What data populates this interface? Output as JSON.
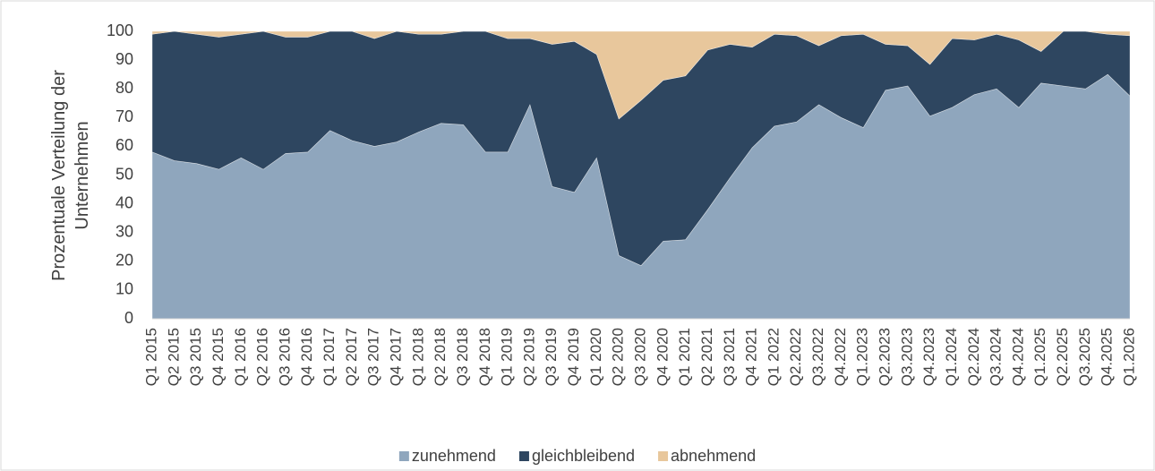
{
  "chart_data": {
    "type": "stacked_area",
    "ylabel": [
      "Prozentuale Verteilung der",
      "Unternehmen"
    ],
    "categories": [
      "Q1 2015",
      "Q2 2015",
      "Q3 2015",
      "Q4 2015",
      "Q1 2016",
      "Q2 2016",
      "Q3 2016",
      "Q4 2016",
      "Q1 2017",
      "Q2 2017",
      "Q3 2017",
      "Q4 2017",
      "Q1 2018",
      "Q2 2018",
      "Q3 2018",
      "Q4 2018",
      "Q1 2019",
      "Q2 2019",
      "Q3 2019",
      "Q4 2019",
      "Q1 2020",
      "Q2 2020",
      "Q3 2020",
      "Q4 2020",
      "Q1 2021",
      "Q2 2021",
      "Q3 2021",
      "Q4 2021",
      "Q1 2022",
      "Q2.2022",
      "Q3.2022",
      "Q4.2022",
      "Q1.2023",
      "Q2.2023",
      "Q3.2023",
      "Q4.2023",
      "Q1.2024",
      "Q2.2024",
      "Q3.2024",
      "Q4.2024",
      "Q1.2025",
      "Q2.2025",
      "Q3.2025",
      "Q4.2025",
      "Q1.2026"
    ],
    "series": [
      {
        "name": "zunehmend",
        "color": "#8fa6bd",
        "values": [
          58,
          55,
          54,
          52,
          56,
          52,
          57.5,
          58,
          65.5,
          62,
          60,
          61.5,
          65,
          68,
          67.5,
          58,
          58,
          74.5,
          46,
          44,
          56,
          22,
          18.5,
          27,
          27.5,
          38,
          49,
          59.5,
          67,
          68.5,
          74.5,
          70,
          66.5,
          79.5,
          81,
          70.5,
          73.5,
          78,
          80,
          73.5,
          82,
          81,
          80,
          85,
          77.5
        ]
      },
      {
        "name": "gleichbleibend",
        "color": "#2e4660",
        "values": [
          41,
          45,
          45,
          46,
          43,
          48,
          40.5,
          40,
          34.5,
          38,
          37.5,
          38.5,
          34,
          31,
          32.5,
          42,
          39.5,
          23,
          49.5,
          52.5,
          36,
          47.5,
          57.5,
          56,
          57,
          55.5,
          46.5,
          35,
          32,
          30,
          20.5,
          28.5,
          32.5,
          16,
          14,
          18,
          24,
          19,
          19,
          23.5,
          11,
          19,
          20,
          14,
          21
        ]
      },
      {
        "name": "abnehmend",
        "color": "#e8c79c",
        "values": [
          1,
          0,
          1,
          2,
          1,
          0,
          2,
          2,
          0,
          0,
          2.5,
          0,
          1,
          1,
          0,
          0,
          2.5,
          2.5,
          4.5,
          3.5,
          8,
          30.5,
          24,
          17,
          15.5,
          6.5,
          4.5,
          5.5,
          1,
          1.5,
          5,
          1.5,
          1,
          4.5,
          5,
          11.5,
          2.5,
          3,
          1,
          3,
          7,
          0,
          0,
          1,
          1.5
        ]
      }
    ],
    "ylim": [
      0,
      100
    ],
    "yticks": [
      0,
      10,
      20,
      30,
      40,
      50,
      60,
      70,
      80,
      90,
      100
    ],
    "legend": "bottom"
  }
}
